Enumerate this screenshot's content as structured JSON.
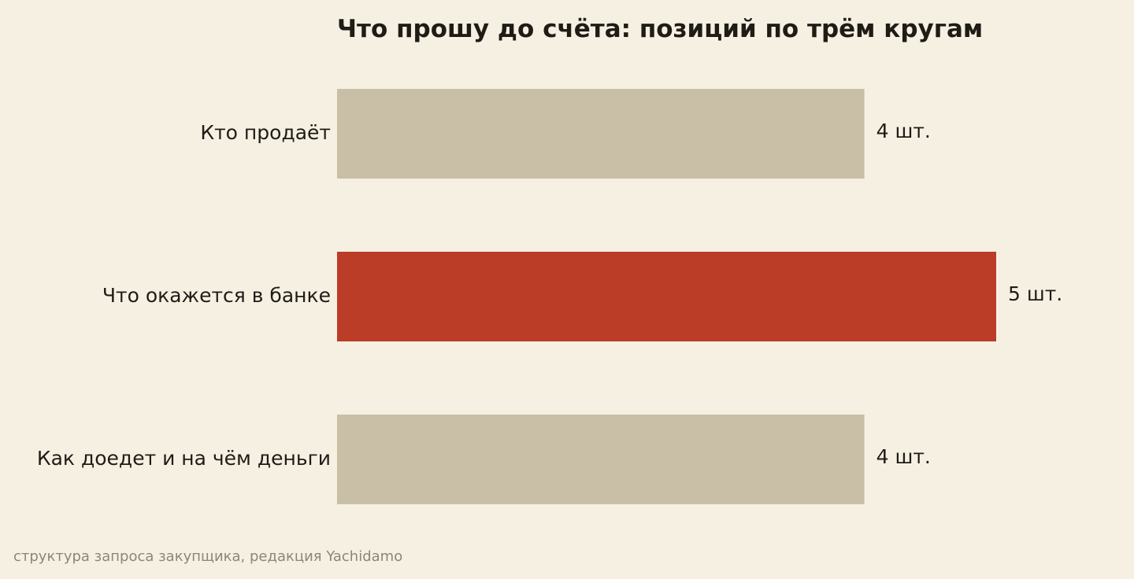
{
  "chart_data": {
    "type": "bar",
    "orientation": "horizontal",
    "title": "Что прошу до счёта: позиций по трём кругам",
    "categories": [
      "Кто продаёт",
      "Что окажется в банке",
      "Как доедет и на чём деньги"
    ],
    "values": [
      4,
      5,
      4
    ],
    "value_labels": [
      "4 шт.",
      "5 шт.",
      "4 шт."
    ],
    "highlight_index": 1,
    "xlim": [
      0,
      5
    ],
    "grid": false,
    "colors": {
      "default_bar": "#c9bfa7",
      "highlight_bar": "#bb3c27",
      "text": "#1f1c16",
      "note": "#8b867c",
      "background": "#f6f0e3"
    }
  },
  "footer": {
    "note": "структура запроса закупщика, редакция Yachidamo"
  }
}
